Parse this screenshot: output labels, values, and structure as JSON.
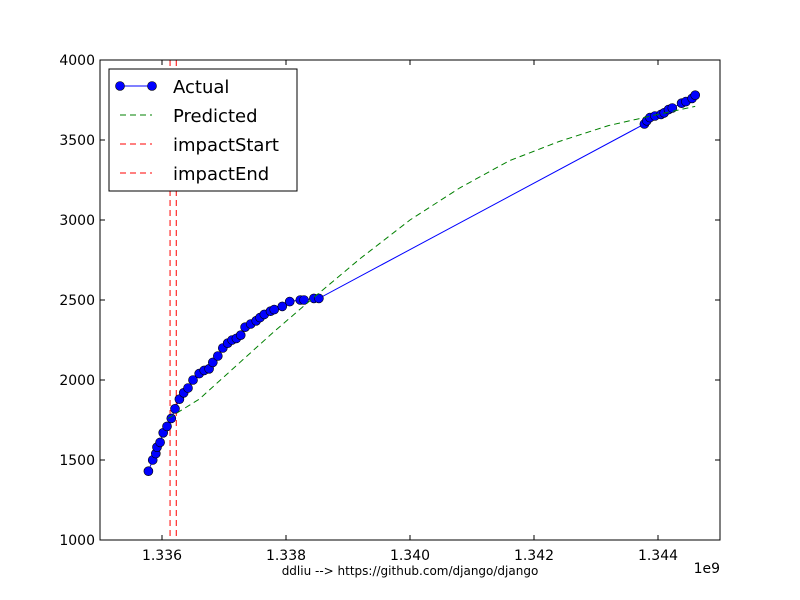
{
  "chart_data": {
    "type": "line",
    "title": "",
    "xlabel": "ddliu --> https://github.com/django/django",
    "ylabel": "",
    "x_offset_label": "1e9",
    "xlim": [
      1.335,
      1.345
    ],
    "ylim": [
      1000,
      4000
    ],
    "xticks": [
      1.336,
      1.338,
      1.34,
      1.342,
      1.344
    ],
    "xtick_labels": [
      "1.336",
      "1.338",
      "1.340",
      "1.342",
      "1.344"
    ],
    "yticks": [
      1000,
      1500,
      2000,
      2500,
      3000,
      3500,
      4000
    ],
    "ytick_labels": [
      "1000",
      "1500",
      "2000",
      "2500",
      "3000",
      "3500",
      "4000"
    ],
    "grid": false,
    "legend_position": "top-left",
    "series": [
      {
        "name": "Actual",
        "style": "solid-line-with-circle-markers",
        "color": "#0000ff",
        "marker_color": "#0000ff",
        "x": [
          1.33578,
          1.33585,
          1.3359,
          1.33592,
          1.33597,
          1.33602,
          1.33608,
          1.33615,
          1.33621,
          1.33628,
          1.33635,
          1.33642,
          1.3365,
          1.3366,
          1.33668,
          1.33676,
          1.33682,
          1.3369,
          1.33698,
          1.33706,
          1.33713,
          1.3372,
          1.33727,
          1.33734,
          1.33743,
          1.33752,
          1.33758,
          1.33765,
          1.33775,
          1.33781,
          1.33794,
          1.33806,
          1.33823,
          1.33829,
          1.33845,
          1.33853,
          1.34378,
          1.34382,
          1.34387,
          1.34395,
          1.34405,
          1.3441,
          1.34417,
          1.34423,
          1.34438,
          1.34445,
          1.34455,
          1.3446
        ],
        "y": [
          1430,
          1500,
          1540,
          1580,
          1610,
          1670,
          1710,
          1760,
          1820,
          1880,
          1920,
          1950,
          2000,
          2040,
          2060,
          2070,
          2110,
          2150,
          2200,
          2230,
          2250,
          2260,
          2280,
          2330,
          2350,
          2370,
          2390,
          2410,
          2430,
          2440,
          2460,
          2490,
          2500,
          2500,
          2510,
          2510,
          3600,
          3620,
          3640,
          3650,
          3660,
          3670,
          3690,
          3700,
          3730,
          3740,
          3760,
          3780
        ]
      },
      {
        "name": "Predicted",
        "style": "dashed",
        "color": "#008000",
        "x": [
          1.3361,
          1.3366,
          1.3372,
          1.3378,
          1.3384,
          1.3392,
          1.34,
          1.3408,
          1.3416,
          1.3424,
          1.3432,
          1.344,
          1.3446
        ],
        "y": [
          1760,
          1880,
          2090,
          2300,
          2500,
          2760,
          3000,
          3200,
          3370,
          3490,
          3590,
          3660,
          3710
        ]
      }
    ],
    "vertical_lines": [
      {
        "name": "impactStart",
        "x": 1.33613,
        "color": "#ff0000",
        "style": "dashed"
      },
      {
        "name": "impactEnd",
        "x": 1.33623,
        "color": "#ff0000",
        "style": "dashed"
      }
    ]
  }
}
